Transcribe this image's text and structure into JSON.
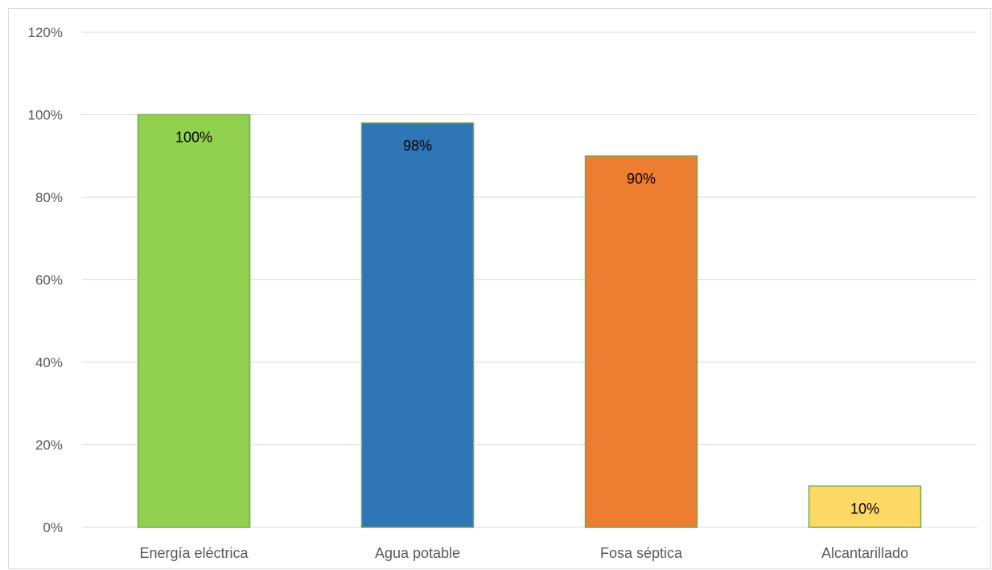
{
  "chart_data": {
    "type": "bar",
    "categories": [
      "Energía eléctrica",
      "Agua potable",
      "Fosa séptica",
      "Alcantarillado"
    ],
    "values": [
      100,
      98,
      90,
      10
    ],
    "data_labels": [
      "100%",
      "98%",
      "90%",
      "10%"
    ],
    "colors": [
      "#92d050",
      "#2e75b6",
      "#ed7d31",
      "#ffd966"
    ],
    "bar_border_color": "#70ad47",
    "ylim": [
      0,
      120
    ],
    "yticks": [
      0,
      20,
      40,
      60,
      80,
      100,
      120
    ],
    "ytick_labels": [
      "0%",
      "20%",
      "40%",
      "60%",
      "80%",
      "100%",
      "120%"
    ],
    "grid": true,
    "grid_color": "#d9d9d9",
    "legend": "none"
  }
}
